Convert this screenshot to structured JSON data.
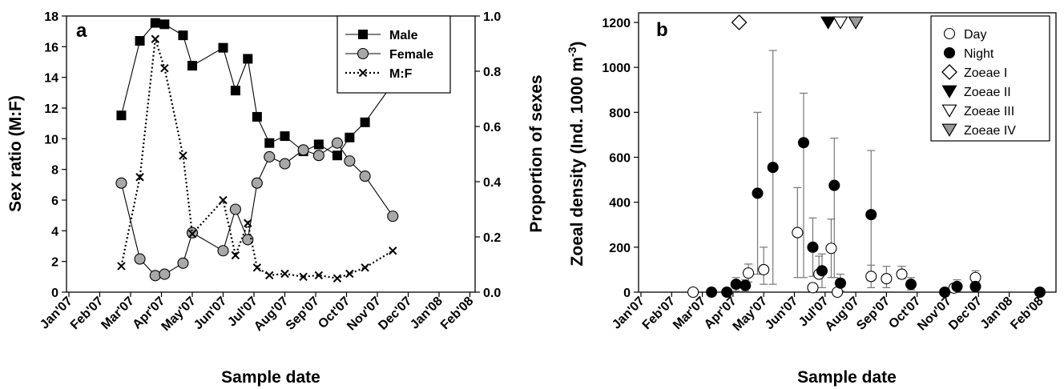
{
  "chart_data": [
    {
      "type": "line",
      "panel_label": "a",
      "xlabel": "Sample date",
      "ylabel": "Sex ratio (M:F)",
      "y2label": "Proportion of sexes",
      "x_ticks": [
        "Jan'07",
        "Feb'07",
        "Mar'07",
        "Apr'07",
        "May'07",
        "Jun'07",
        "Jul'07",
        "Aug'07",
        "Sep'07",
        "Oct'07",
        "Nov'07",
        "Dec'07",
        "Jan'08",
        "Feb'08"
      ],
      "ylim": [
        0,
        18
      ],
      "y_ticks": [
        "0",
        "2",
        "4",
        "6",
        "8",
        "10",
        "12",
        "14",
        "16",
        "18"
      ],
      "y2lim": [
        0,
        1.0
      ],
      "y2_ticks": [
        "0.0",
        "0.2",
        "0.4",
        "0.6",
        "0.8",
        "1.0"
      ],
      "legend_position": "top-right",
      "series": [
        {
          "name": "Male",
          "axis": "right",
          "marker": "square-filled",
          "line": "solid",
          "x": [
            1.7,
            2.3,
            2.8,
            3.1,
            3.7,
            4.0,
            5.0,
            5.4,
            5.8,
            6.1,
            6.5,
            7.0,
            7.6,
            8.1,
            8.7,
            9.1,
            9.6,
            10.5
          ],
          "values": [
            0.64,
            0.91,
            0.975,
            0.97,
            0.93,
            0.82,
            0.885,
            0.73,
            0.845,
            0.635,
            0.54,
            0.565,
            0.51,
            0.535,
            0.495,
            0.56,
            0.615,
            0.755
          ]
        },
        {
          "name": "Female",
          "axis": "right",
          "marker": "circle-gray",
          "line": "solid",
          "x": [
            1.7,
            2.3,
            2.8,
            3.1,
            3.7,
            4.0,
            5.0,
            5.4,
            5.8,
            6.1,
            6.5,
            7.0,
            7.6,
            8.1,
            8.7,
            9.1,
            9.6,
            10.5
          ],
          "values": [
            0.395,
            0.12,
            0.06,
            0.065,
            0.105,
            0.215,
            0.15,
            0.3,
            0.19,
            0.395,
            0.49,
            0.465,
            0.515,
            0.495,
            0.54,
            0.475,
            0.42,
            0.275
          ]
        },
        {
          "name": "M:F",
          "axis": "left",
          "marker": "x",
          "line": "dotted",
          "x": [
            1.7,
            2.3,
            2.8,
            3.1,
            3.7,
            4.0,
            5.0,
            5.4,
            5.8,
            6.1,
            6.5,
            7.0,
            7.6,
            8.1,
            8.7,
            9.1,
            9.6,
            10.5
          ],
          "values": [
            1.7,
            7.5,
            16.5,
            14.6,
            8.9,
            3.8,
            6.0,
            2.4,
            4.5,
            1.6,
            1.1,
            1.2,
            1.0,
            1.1,
            0.9,
            1.2,
            1.6,
            2.7
          ]
        }
      ]
    },
    {
      "type": "scatter",
      "panel_label": "b",
      "xlabel": "Sample date",
      "ylabel": "Zoeal density (Ind. 1000 m",
      "ylabel_sup": "-3",
      "ylabel_end": ")",
      "x_ticks": [
        "Jan'07",
        "Feb'07",
        "Mar'07",
        "Apr'07",
        "May'07",
        "Jun'07",
        "Jul'07",
        "Aug'07",
        "Sep'07",
        "Oct'07",
        "Nov'07",
        "Dec'07",
        "Jan'08",
        "Feb'08"
      ],
      "ylim": [
        0,
        1200
      ],
      "y_ticks": [
        "0",
        "200",
        "400",
        "600",
        "800",
        "1000",
        "1200"
      ],
      "legend_position": "top-right",
      "legend": [
        "Day",
        "Night",
        "Zoeae I",
        "Zoeae II",
        "Zoeae III",
        "Zoeae IV"
      ],
      "series": [
        {
          "name": "Day",
          "marker": "circle-open",
          "x": [
            1.7,
            3.5,
            4.0,
            5.1,
            5.6,
            5.8,
            6.2,
            6.4,
            7.5,
            8.0,
            8.5,
            10.2,
            10.9
          ],
          "values": [
            0,
            85,
            100,
            265,
            20,
            80,
            195,
            0,
            70,
            60,
            80,
            18,
            65
          ],
          "err_low": [
            0,
            40,
            65,
            200,
            0,
            0,
            130,
            0,
            50,
            40,
            20,
            0,
            30
          ],
          "err_high": [
            0,
            40,
            100,
            200,
            0,
            80,
            130,
            0,
            50,
            55,
            35,
            15,
            30
          ]
        },
        {
          "name": "Night",
          "marker": "circle-filled",
          "x": [
            2.3,
            2.8,
            3.1,
            3.4,
            3.8,
            4.3,
            5.3,
            5.6,
            5.9,
            6.3,
            6.5,
            7.5,
            8.8,
            9.9,
            10.3,
            10.9,
            13.0
          ],
          "values": [
            0,
            0,
            35,
            30,
            440,
            555,
            665,
            200,
            95,
            475,
            40,
            345,
            35,
            0,
            25,
            25,
            0
          ],
          "err_low": [
            0,
            0,
            30,
            25,
            360,
            520,
            600,
            130,
            75,
            410,
            35,
            285,
            25,
            0,
            20,
            20,
            0
          ],
          "err_high": [
            0,
            0,
            30,
            25,
            360,
            520,
            220,
            130,
            75,
            210,
            40,
            285,
            30,
            0,
            30,
            20,
            0
          ]
        },
        {
          "name": "Zoeae I",
          "marker": "diamond-open",
          "x": [
            3.2
          ],
          "values": [
            1200
          ]
        },
        {
          "name": "Zoeae II",
          "marker": "triangle-down-filled",
          "x": [
            6.1
          ],
          "values": [
            1200
          ]
        },
        {
          "name": "Zoeae III",
          "marker": "triangle-down-open",
          "x": [
            6.5
          ],
          "values": [
            1200
          ]
        },
        {
          "name": "Zoeae IV",
          "marker": "triangle-down-gray",
          "x": [
            7.0
          ],
          "values": [
            1200
          ]
        }
      ]
    }
  ]
}
